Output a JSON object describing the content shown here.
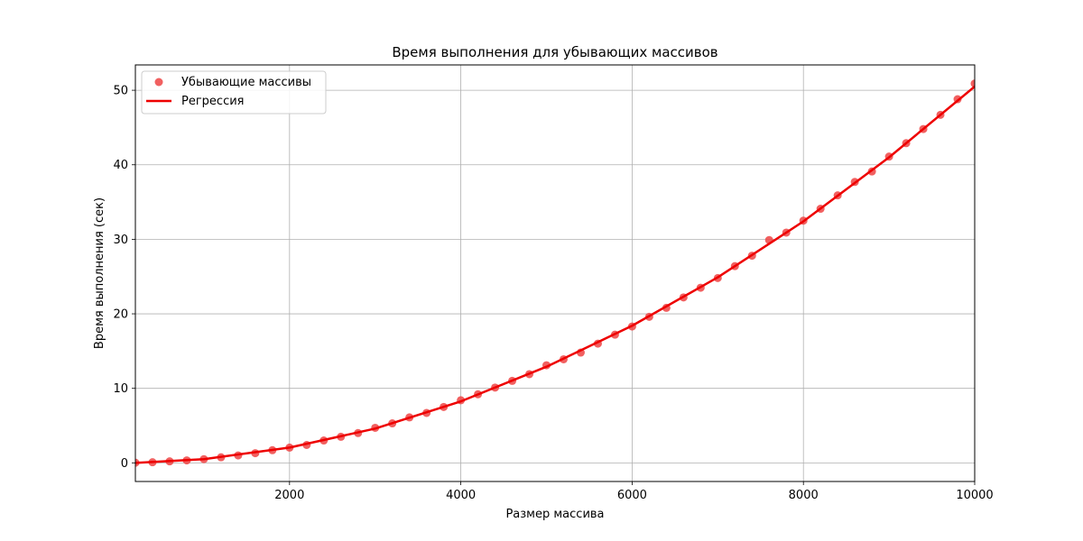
{
  "chart_data": {
    "type": "scatter",
    "title": "Время выполнения для убывающих массивов",
    "xlabel": "Размер массива",
    "ylabel": "Время выполнения (сек)",
    "xlim": [
      200,
      10000
    ],
    "ylim": [
      -2.5,
      53.4
    ],
    "x_ticks": [
      2000,
      4000,
      6000,
      8000,
      10000
    ],
    "x_tick_labels": [
      "2000",
      "4000",
      "6000",
      "8000",
      "10000"
    ],
    "y_ticks": [
      0,
      10,
      20,
      30,
      40,
      50
    ],
    "y_tick_labels": [
      "0",
      "10",
      "20",
      "30",
      "40",
      "50"
    ],
    "grid": true,
    "legend_position": "top-left",
    "colors": {
      "points": "#ee4444",
      "regression": "#ee0000",
      "grid": "#b0b0b0"
    },
    "series": [
      {
        "name": "Убывающие массивы",
        "kind": "scatter",
        "x": [
          200,
          400,
          600,
          800,
          1000,
          1200,
          1400,
          1600,
          1800,
          2000,
          2200,
          2400,
          2600,
          2800,
          3000,
          3200,
          3400,
          3600,
          3800,
          4000,
          4200,
          4400,
          4600,
          4800,
          5000,
          5200,
          5400,
          5600,
          5800,
          6000,
          6200,
          6400,
          6600,
          6800,
          7000,
          7200,
          7400,
          7600,
          7800,
          8000,
          8200,
          8400,
          8600,
          8800,
          9000,
          9200,
          9400,
          9600,
          9800,
          10000
        ],
        "y": [
          0.02,
          0.08,
          0.2,
          0.33,
          0.5,
          0.75,
          1.0,
          1.3,
          1.7,
          2.05,
          2.4,
          3.0,
          3.5,
          4.0,
          4.7,
          5.3,
          6.1,
          6.7,
          7.5,
          8.4,
          9.2,
          10.1,
          11.0,
          11.9,
          13.1,
          13.9,
          14.8,
          16.0,
          17.2,
          18.3,
          19.6,
          20.8,
          22.2,
          23.5,
          24.8,
          26.4,
          27.8,
          29.9,
          30.9,
          32.5,
          34.1,
          35.9,
          37.7,
          39.1,
          41.1,
          42.9,
          44.8,
          46.7,
          48.8,
          50.9
        ]
      },
      {
        "name": "Регрессия",
        "kind": "line",
        "fit": "quadratic",
        "x": [
          200,
          1000,
          2000,
          3000,
          4000,
          5000,
          6000,
          7000,
          8000,
          9000,
          10000
        ],
        "y": [
          0.0,
          0.5,
          2.05,
          4.6,
          8.25,
          12.9,
          18.4,
          24.9,
          32.4,
          41.0,
          50.5
        ]
      }
    ]
  }
}
